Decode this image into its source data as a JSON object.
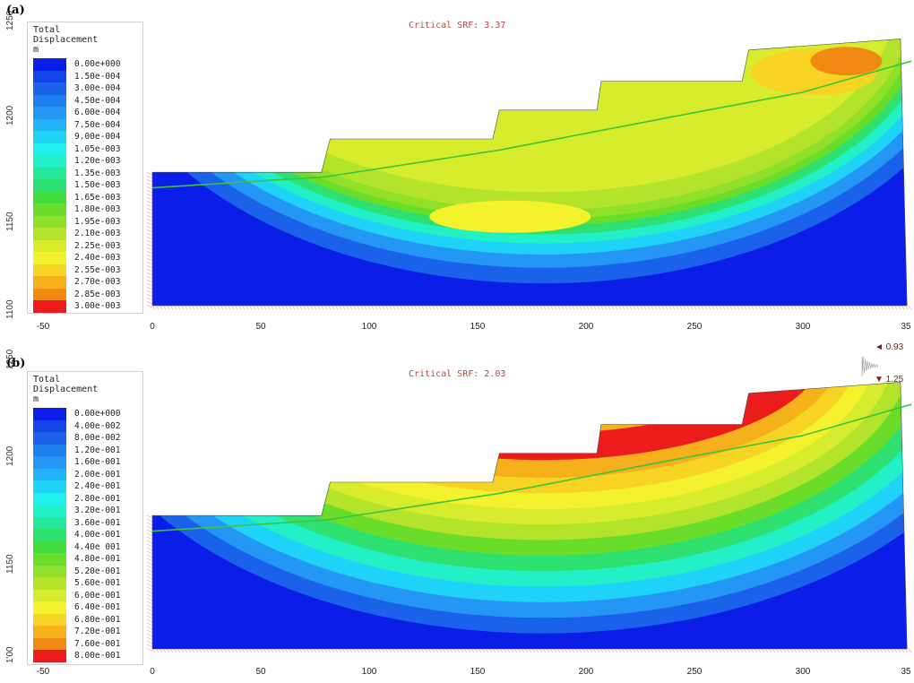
{
  "chart_data": [
    {
      "type": "heatmap",
      "panel_label": "(a)",
      "title": "Critical SRF: 3.37",
      "legend_title": [
        "Total",
        "Displacement",
        "m"
      ],
      "legend_values": [
        "0.00e+000",
        "1.50e-004",
        "3.00e-004",
        "4.50e-004",
        "6.00e-004",
        "7.50e-004",
        "9.00e-004",
        "1.05e-003",
        "1.20e-003",
        "1.35e-003",
        "1.50e-003",
        "1.65e-003",
        "1.80e-003",
        "1.95e-003",
        "2.10e-003",
        "2.25e-003",
        "2.40e-003",
        "2.55e-003",
        "2.70e-003",
        "2.85e-003",
        "3.00e-003"
      ],
      "x_ticks": [
        "-50",
        "0",
        "50",
        "100",
        "150",
        "200",
        "250",
        "300",
        "35"
      ],
      "y_ticks": [
        "1250",
        "1200",
        "1150",
        "1100"
      ],
      "xlim": [
        -50,
        350
      ],
      "ylim": [
        1100,
        1250
      ],
      "critical_srf": 3.37
    },
    {
      "type": "heatmap",
      "panel_label": "(b)",
      "title": "Critical SRF: 2.03",
      "legend_title": [
        "Total",
        "Displacement",
        "m"
      ],
      "legend_values": [
        "0.00e+000",
        "4.00e-002",
        "8.00e-002",
        "1.20e-001",
        "1.60e-001",
        "2.00e-001",
        "2.40e-001",
        "2.80e-001",
        "3.20e-001",
        "3.60e-001",
        "4.00e-001",
        "4.40e 001",
        "4.80e-001",
        "5.20e-001",
        "5.60e-001",
        "6.00e-001",
        "6.40e-001",
        "6.80e-001",
        "7.20e-001",
        "7.60e-001",
        "8.00e-001"
      ],
      "x_ticks": [
        "-50",
        "0",
        "50",
        "100",
        "150",
        "200",
        "250",
        "300",
        "35"
      ],
      "y_ticks": [
        "1250",
        "1200",
        "1150",
        "1'00"
      ],
      "xlim": [
        -50,
        350
      ],
      "ylim": [
        1100,
        1250
      ],
      "critical_srf": 2.03,
      "seismic": {
        "horizontal": "◄ 0.93",
        "vertical": "▼ 1.25"
      }
    }
  ],
  "colors": {
    "scale": [
      "#0a1ee8",
      "#1443e6",
      "#1a62ea",
      "#1f7ef0",
      "#2497f4",
      "#22b3f7",
      "#1fd2f7",
      "#1ff0ee",
      "#22f0c6",
      "#26e89c",
      "#2ee070",
      "#42dc3e",
      "#6adc2a",
      "#90df2a",
      "#b4e32c",
      "#d8ec2e",
      "#f4f22c",
      "#f7d424",
      "#f5b01c",
      "#f08a12",
      "#ec1c1c"
    ],
    "water_table": "#3cc43c",
    "srf_text": "#b54a44"
  }
}
